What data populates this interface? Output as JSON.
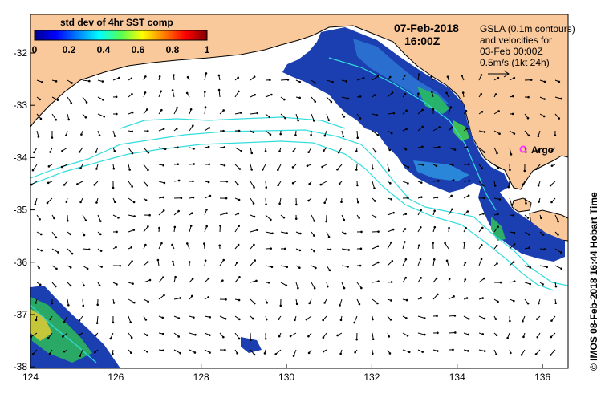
{
  "map": {
    "date": "07-Feb-2018",
    "time": "16:00Z",
    "colorbar": {
      "title": "std dev of 4hr SST comp",
      "ticks": [
        "0",
        "0.2",
        "0.4",
        "0.6",
        "0.8",
        "1"
      ]
    },
    "gsla_lines": [
      "GSLA (0.1m contours)",
      "and velocities for",
      "03-Feb 00:00Z"
    ],
    "scale_label": "0.5m/s (1kt 24h)",
    "argo_label": "Argo",
    "x_ticks": [
      "124",
      "126",
      "128",
      "130",
      "132",
      "134",
      "136"
    ],
    "y_ticks": [
      "-32",
      "-33",
      "-34",
      "-35",
      "-36",
      "-37",
      "-38"
    ],
    "credit": "© IMOS 08-Feb-2018 16:44 Hobart Time",
    "colors": {
      "land": "#f9c89b",
      "ocean": "#ffffff",
      "contour": "#33dddd",
      "argo": "#ff33ff",
      "sst_patch": "#1b3fb0"
    }
  }
}
